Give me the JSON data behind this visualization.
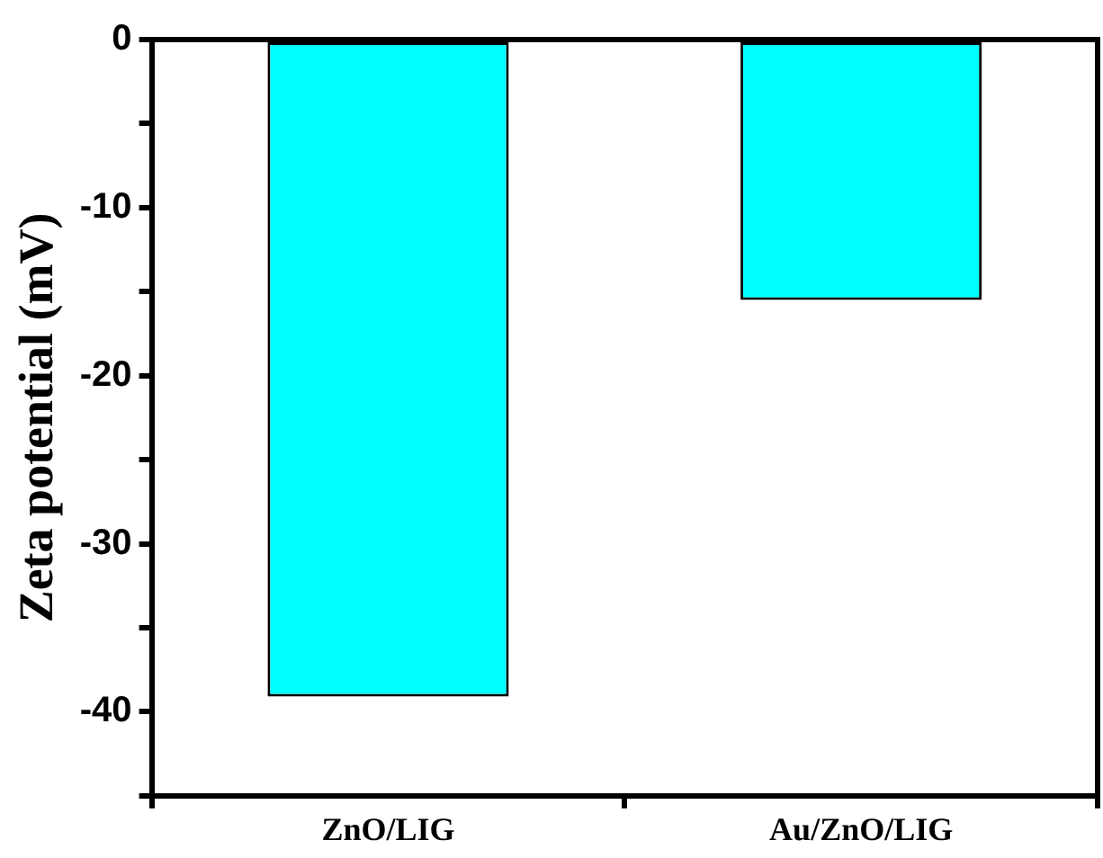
{
  "chart_data": {
    "type": "bar",
    "ylabel": "Zeta potential (mV)",
    "categories": [
      "ZnO/LIG",
      "Au/ZnO/LIG"
    ],
    "values": [
      -39.1,
      -15.5
    ],
    "color": "#00ffff",
    "ylim": [
      -45,
      0
    ],
    "yticks": [
      {
        "value": -45,
        "label": null
      },
      -40,
      {
        "value": -35,
        "label": null
      },
      -30,
      {
        "value": -25,
        "label": null
      },
      -20,
      {
        "value": -15,
        "label": null
      },
      -10,
      {
        "value": -5,
        "label": null
      },
      0
    ]
  }
}
